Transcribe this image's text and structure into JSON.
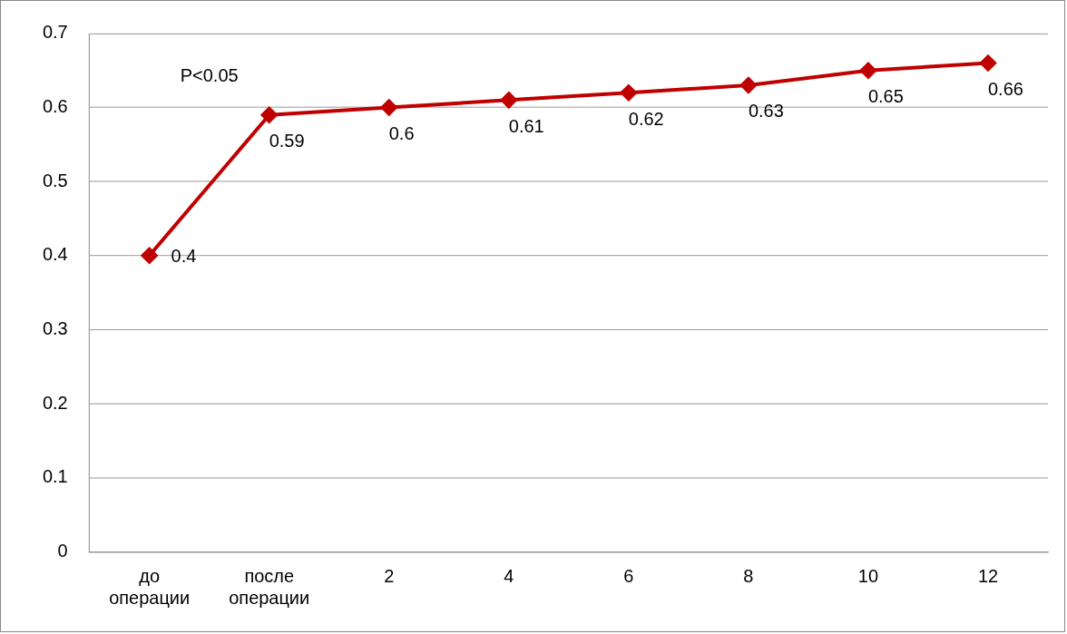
{
  "chart_data": {
    "type": "line",
    "categories": [
      "до операции",
      "после операции",
      "2",
      "4",
      "6",
      "8",
      "10",
      "12"
    ],
    "series": [
      {
        "color": "#c00000",
        "values": [
          0.4,
          0.59,
          0.6,
          0.61,
          0.62,
          0.63,
          0.65,
          0.66
        ]
      }
    ],
    "ylim": [
      0,
      0.7
    ],
    "yticks": [
      0,
      0.1,
      0.2,
      0.3,
      0.4,
      0.5,
      0.6,
      0.7
    ],
    "grid": "y",
    "legend": false,
    "marker": "diamond",
    "line_style": "solid",
    "data_labels": true,
    "annotations": [
      "P<0.05"
    ]
  }
}
